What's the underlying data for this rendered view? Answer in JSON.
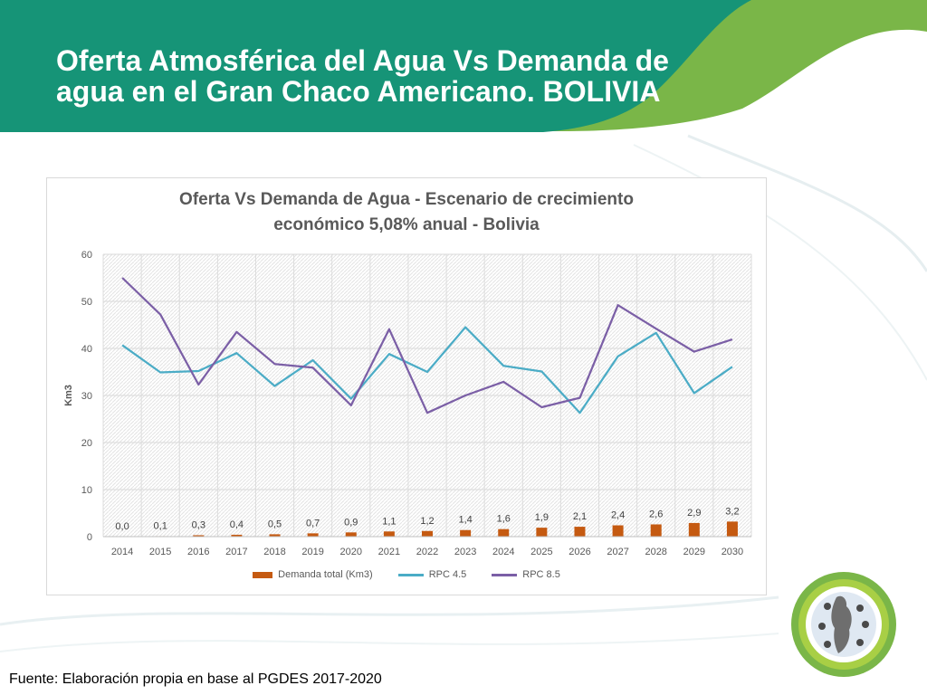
{
  "slide": {
    "title_line1": "Oferta Atmosférica del Agua Vs Demanda de",
    "title_line2": "agua en el Gran Chaco Americano. BOLIVIA",
    "footer": "Fuente: Elaboración propia en base al PGDES 2017-2020"
  },
  "colors": {
    "header_teal": "#169477",
    "header_green": "#7ab648",
    "demand_bar": "#c55a11",
    "rpc45": "#4bacc6",
    "rpc85": "#7b5fa6"
  },
  "chart_data": {
    "type": "bar+line",
    "title_line1": "Oferta Vs Demanda de Agua - Escenario de crecimiento",
    "title_line2": "económico 5,08% anual - Bolivia",
    "xlabel": "",
    "ylabel": "Km3",
    "ylim": [
      0,
      60
    ],
    "yticks": [
      0,
      10,
      20,
      30,
      40,
      50,
      60
    ],
    "categories": [
      "2014",
      "2015",
      "2016",
      "2017",
      "2018",
      "2019",
      "2020",
      "2021",
      "2022",
      "2023",
      "2024",
      "2025",
      "2026",
      "2027",
      "2028",
      "2029",
      "2030"
    ],
    "series": [
      {
        "name": "Demanda total (Km3)",
        "kind": "bar",
        "values": [
          0.0,
          0.1,
          0.3,
          0.4,
          0.5,
          0.7,
          0.9,
          1.1,
          1.2,
          1.4,
          1.6,
          1.9,
          2.1,
          2.4,
          2.6,
          2.9,
          3.2
        ],
        "labels": [
          "0,0",
          "0,1",
          "0,3",
          "0,4",
          "0,5",
          "0,7",
          "0,9",
          "1,1",
          "1,2",
          "1,4",
          "1,6",
          "1,9",
          "2,1",
          "2,4",
          "2,6",
          "2,9",
          "3,2"
        ]
      },
      {
        "name": "RPC 4.5",
        "kind": "line",
        "values": [
          40.7,
          34.9,
          35.2,
          39.0,
          32.0,
          37.5,
          29.3,
          38.8,
          35.0,
          44.5,
          36.3,
          35.1,
          26.3,
          38.3,
          43.3,
          30.5,
          36.1
        ]
      },
      {
        "name": "RPC 8.5",
        "kind": "line",
        "values": [
          55.0,
          47.2,
          32.3,
          43.5,
          36.7,
          35.9,
          27.9,
          44.1,
          26.3,
          30.0,
          32.9,
          27.5,
          29.5,
          49.2,
          44.2,
          39.3,
          41.9
        ]
      }
    ],
    "grid": true,
    "legend": "bottom"
  }
}
